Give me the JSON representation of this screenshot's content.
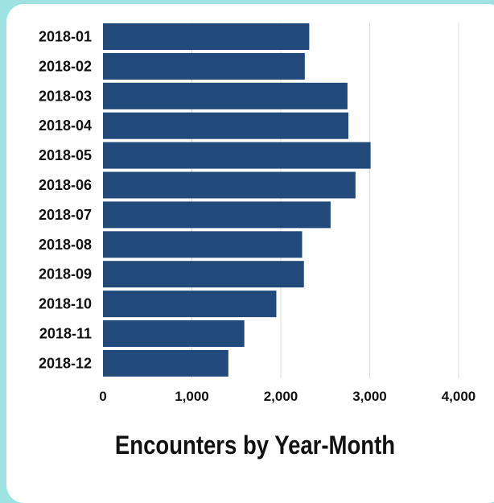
{
  "chart_data": {
    "type": "bar",
    "orientation": "horizontal",
    "title": "Encounters by Year-Month",
    "xlabel": "",
    "ylabel": "",
    "categories": [
      "2018-01",
      "2018-02",
      "2018-03",
      "2018-04",
      "2018-05",
      "2018-06",
      "2018-07",
      "2018-08",
      "2018-09",
      "2018-10",
      "2018-11",
      "2018-12"
    ],
    "values": [
      2320,
      2270,
      2750,
      2760,
      3010,
      2840,
      2560,
      2240,
      2260,
      1950,
      1590,
      1410
    ],
    "xlim": [
      0,
      4000
    ],
    "xticks": [
      "0",
      "1,000",
      "2,000",
      "3,000",
      "4,000"
    ],
    "tick_values": [
      0,
      1000,
      2000,
      3000,
      4000
    ],
    "grid": "vertical",
    "bar_color": "#214a7a"
  },
  "colors": {
    "background": "#9fe2e2",
    "card": "#ffffff",
    "grid": "#dcdcdc"
  }
}
